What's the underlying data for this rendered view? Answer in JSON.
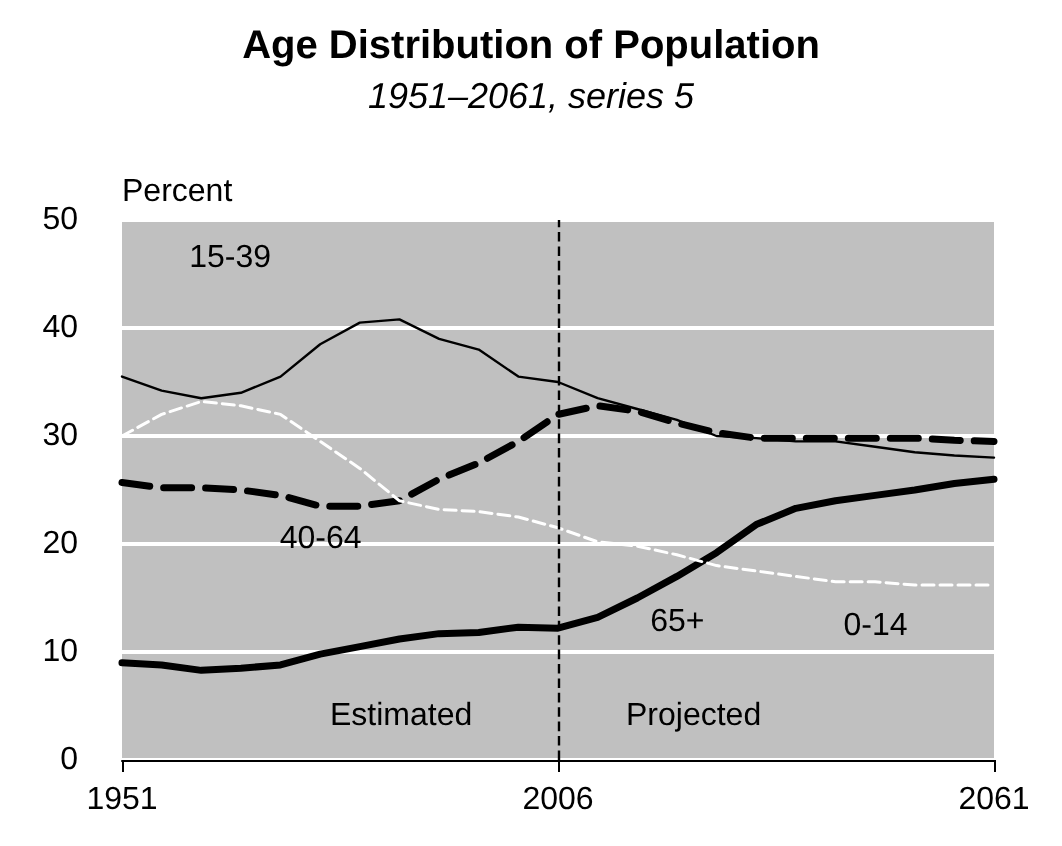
{
  "chart_data": {
    "type": "line",
    "title": "Age Distribution of Population",
    "subtitle": "1951–2061, series 5",
    "ylabel": "Percent",
    "x": [
      1951,
      1956,
      1961,
      1966,
      1971,
      1976,
      1981,
      1986,
      1991,
      1996,
      2001,
      2006,
      2011,
      2016,
      2021,
      2026,
      2031,
      2036,
      2041,
      2046,
      2051,
      2056,
      2061
    ],
    "series": [
      {
        "name": "15-39",
        "color": "#000000",
        "line_style": "solid",
        "values": [
          35.5,
          34.2,
          33.5,
          34,
          35.5,
          38.5,
          40.5,
          40.8,
          39,
          38,
          35.5,
          35,
          33.5,
          32.5,
          31.5,
          30,
          29.8,
          29.5,
          29.5,
          29,
          28.5,
          28.2,
          28
        ]
      },
      {
        "name": "40-64",
        "color": "#000000",
        "line_style": "dashed",
        "values": [
          25.7,
          25.2,
          25.2,
          25,
          24.5,
          23.5,
          23.5,
          24,
          26,
          27.5,
          29.5,
          32,
          32.8,
          32.3,
          31.2,
          30.3,
          29.8,
          29.8,
          29.8,
          29.8,
          29.8,
          29.6,
          29.5
        ]
      },
      {
        "name": "65+",
        "color": "#000000",
        "line_style": "solid",
        "values": [
          9,
          8.8,
          8.3,
          8.5,
          8.8,
          9.8,
          10.5,
          11.2,
          11.7,
          11.8,
          12.3,
          12.2,
          13.2,
          15,
          17,
          19.2,
          21.8,
          23.3,
          24,
          24.5,
          25,
          25.6,
          26
        ]
      },
      {
        "name": "0-14",
        "color": "#ffffff",
        "line_style": "dashed",
        "values": [
          30,
          32,
          33.2,
          32.8,
          32,
          29.5,
          27,
          24,
          23.2,
          23,
          22.5,
          21.5,
          20.2,
          19.8,
          19,
          18,
          17.5,
          17,
          16.5,
          16.5,
          16.2,
          16.2,
          16.2
        ]
      }
    ],
    "xlim": [
      1951,
      2061
    ],
    "xticks": [
      1951,
      2006,
      2061
    ],
    "ylim": [
      0,
      50
    ],
    "yticks": [
      0,
      10,
      20,
      30,
      40,
      50
    ],
    "grid": "y",
    "legend": false,
    "marker": "none",
    "ref_lines": [
      {
        "axis": "x",
        "value": 2006,
        "color": "#000000",
        "line_style": "dashed"
      }
    ],
    "annotations": [
      "Estimated",
      "Projected"
    ]
  }
}
